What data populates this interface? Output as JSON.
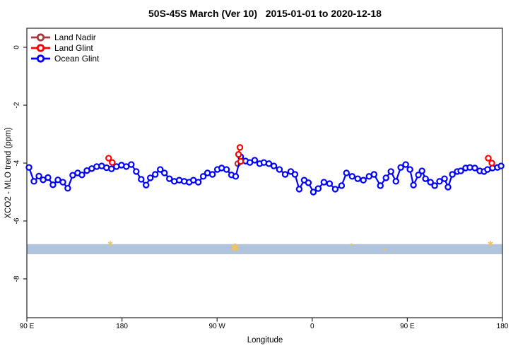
{
  "title": "50S-45S March (Ver 10)   2015-01-01 to 2020-12-18",
  "axes": {
    "x": {
      "label": "Longitude",
      "ticks": [
        "90 E",
        "180",
        "90 W",
        "0",
        "90 E",
        "180"
      ],
      "positions_deg": [
        0,
        90,
        180,
        270,
        360,
        450
      ]
    },
    "y": {
      "label": "XCO2 - MLO trend (ppm)",
      "ticks": [
        "0",
        "-2",
        "-4",
        "-6",
        "-8"
      ],
      "values": [
        0,
        -2,
        -4,
        -6,
        -8
      ]
    }
  },
  "legend": {
    "items": [
      {
        "label": "Land Nadir",
        "color": "#A03C3C"
      },
      {
        "label": "Land Glint",
        "color": "#FF0000"
      },
      {
        "label": "Ocean Glint",
        "color": "#0000FF"
      }
    ]
  },
  "chart_data": {
    "type": "line",
    "title": "50S-45S March (Ver 10)   2015-01-01 to 2020-12-18",
    "xlabel": "Longitude",
    "ylabel": "XCO2 - MLO trend (ppm)",
    "x_axis_note": "x axis spans 450 degrees of longitude wrapping eastward from 90E: ticks 90E,180,90W,0,90E,180; x values below are degrees along axis from left edge (90E = 0)",
    "ylim": [
      -9.3,
      0.7
    ],
    "grid": false,
    "legend_position": "top-left",
    "series": [
      {
        "name": "Land Nadir",
        "color": "#A03C3C",
        "marker": "open-circle",
        "points": [
          [
            199.6,
            -4.02
          ]
        ]
      },
      {
        "name": "Land Glint",
        "color": "#FF0000",
        "marker": "open-circle",
        "points": [
          [
            77.4,
            -3.83
          ],
          [
            80.8,
            -3.98
          ],
          [
            201.6,
            -3.46
          ],
          [
            200.3,
            -3.7
          ],
          [
            202.3,
            -3.94
          ],
          [
            436.6,
            -3.83
          ],
          [
            440.0,
            -4.0
          ]
        ],
        "segments": [
          [
            0,
            1
          ],
          [
            2,
            3,
            4
          ],
          [
            5,
            6
          ]
        ]
      },
      {
        "name": "Ocean Glint",
        "color": "#0000FF",
        "marker": "open-circle",
        "points": [
          [
            2.0,
            -4.15
          ],
          [
            6.7,
            -4.63
          ],
          [
            11.4,
            -4.45
          ],
          [
            15.4,
            -4.58
          ],
          [
            20.0,
            -4.5
          ],
          [
            24.7,
            -4.75
          ],
          [
            29.4,
            -4.58
          ],
          [
            34.1,
            -4.66
          ],
          [
            38.7,
            -4.87
          ],
          [
            43.4,
            -4.42
          ],
          [
            48.1,
            -4.34
          ],
          [
            52.1,
            -4.41
          ],
          [
            56.8,
            -4.26
          ],
          [
            61.4,
            -4.19
          ],
          [
            66.1,
            -4.12
          ],
          [
            70.8,
            -4.1
          ],
          [
            75.4,
            -4.16
          ],
          [
            80.1,
            -4.2
          ],
          [
            84.8,
            -4.12
          ],
          [
            89.5,
            -4.07
          ],
          [
            94.1,
            -4.12
          ],
          [
            98.8,
            -4.05
          ],
          [
            103.5,
            -4.29
          ],
          [
            108.2,
            -4.56
          ],
          [
            112.8,
            -4.76
          ],
          [
            116.8,
            -4.51
          ],
          [
            121.5,
            -4.39
          ],
          [
            126.2,
            -4.22
          ],
          [
            130.2,
            -4.34
          ],
          [
            134.9,
            -4.54
          ],
          [
            139.5,
            -4.63
          ],
          [
            144.2,
            -4.59
          ],
          [
            148.9,
            -4.63
          ],
          [
            153.6,
            -4.66
          ],
          [
            157.6,
            -4.59
          ],
          [
            162.2,
            -4.66
          ],
          [
            166.9,
            -4.46
          ],
          [
            170.9,
            -4.34
          ],
          [
            175.6,
            -4.39
          ],
          [
            180.3,
            -4.22
          ],
          [
            184.3,
            -4.17
          ],
          [
            188.9,
            -4.22
          ],
          [
            193.6,
            -4.41
          ],
          [
            197.6,
            -4.46
          ],
          [
            202.3,
            -3.78
          ],
          [
            207.0,
            -3.93
          ],
          [
            211.0,
            -3.98
          ],
          [
            215.6,
            -3.9
          ],
          [
            220.3,
            -4.02
          ],
          [
            224.3,
            -3.98
          ],
          [
            229.0,
            -4.02
          ],
          [
            233.7,
            -4.1
          ],
          [
            239.0,
            -4.22
          ],
          [
            244.4,
            -4.39
          ],
          [
            249.7,
            -4.29
          ],
          [
            253.7,
            -4.39
          ],
          [
            257.7,
            -4.9
          ],
          [
            262.4,
            -4.59
          ],
          [
            266.4,
            -4.68
          ],
          [
            271.1,
            -5.0
          ],
          [
            275.7,
            -4.88
          ],
          [
            281.1,
            -4.66
          ],
          [
            286.4,
            -4.71
          ],
          [
            291.8,
            -4.9
          ],
          [
            297.8,
            -4.78
          ],
          [
            302.4,
            -4.34
          ],
          [
            307.8,
            -4.46
          ],
          [
            313.1,
            -4.54
          ],
          [
            318.4,
            -4.59
          ],
          [
            323.8,
            -4.46
          ],
          [
            328.5,
            -4.39
          ],
          [
            334.5,
            -4.78
          ],
          [
            339.8,
            -4.51
          ],
          [
            344.5,
            -4.29
          ],
          [
            349.2,
            -4.63
          ],
          [
            353.8,
            -4.15
          ],
          [
            358.5,
            -4.05
          ],
          [
            362.5,
            -4.22
          ],
          [
            365.8,
            -4.76
          ],
          [
            370.5,
            -4.41
          ],
          [
            373.9,
            -4.27
          ],
          [
            377.2,
            -4.54
          ],
          [
            381.9,
            -4.66
          ],
          [
            385.9,
            -4.78
          ],
          [
            390.5,
            -4.63
          ],
          [
            395.2,
            -4.54
          ],
          [
            398.5,
            -4.83
          ],
          [
            402.6,
            -4.39
          ],
          [
            407.2,
            -4.29
          ],
          [
            410.6,
            -4.27
          ],
          [
            415.2,
            -4.17
          ],
          [
            419.2,
            -4.15
          ],
          [
            423.9,
            -4.17
          ],
          [
            428.6,
            -4.27
          ],
          [
            432.6,
            -4.29
          ],
          [
            435.9,
            -4.22
          ],
          [
            440.6,
            -4.17
          ],
          [
            445.3,
            -4.15
          ],
          [
            448.7,
            -4.1
          ]
        ]
      }
    ],
    "band": {
      "color": "#B0C4DE",
      "y_top": -6.8,
      "y_bottom": -7.15,
      "x_start": 0,
      "x_end": 450
    },
    "band_marks": {
      "color": "#F4C457",
      "symbol": "asterisk-star",
      "points": [
        [
          78.8,
          -6.78,
          9
        ],
        [
          196.9,
          -6.95,
          16
        ],
        [
          307.1,
          -6.83,
          5
        ],
        [
          338.5,
          -7.0,
          5
        ],
        [
          438.6,
          -6.8,
          10
        ]
      ]
    }
  }
}
